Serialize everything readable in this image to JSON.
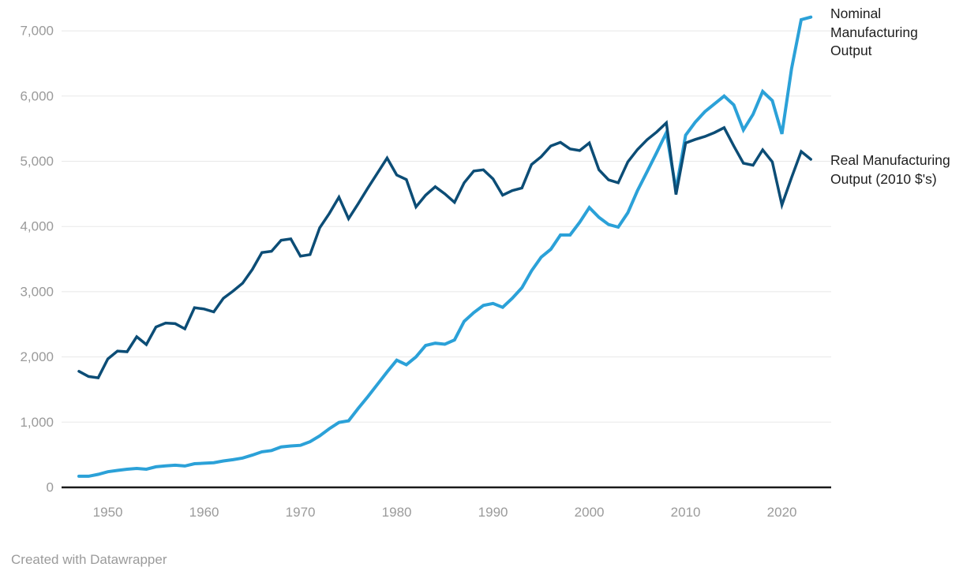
{
  "chart": {
    "attribution_text": "Created with Datawrapper"
  },
  "chart_data": {
    "type": "line",
    "title": "",
    "xlabel": "",
    "ylabel": "",
    "grid": "horizontal",
    "legend_position": "right of line ends",
    "x_range": [
      1947,
      2023
    ],
    "ylim": [
      0,
      7400
    ],
    "x": [
      1947,
      1948,
      1949,
      1950,
      1951,
      1952,
      1953,
      1954,
      1955,
      1956,
      1957,
      1958,
      1959,
      1960,
      1961,
      1962,
      1963,
      1964,
      1965,
      1966,
      1967,
      1968,
      1969,
      1970,
      1971,
      1972,
      1973,
      1974,
      1975,
      1976,
      1977,
      1978,
      1979,
      1980,
      1981,
      1982,
      1983,
      1984,
      1985,
      1986,
      1987,
      1988,
      1989,
      1990,
      1991,
      1992,
      1993,
      1994,
      1995,
      1996,
      1997,
      1998,
      1999,
      2000,
      2001,
      2002,
      2003,
      2004,
      2005,
      2006,
      2007,
      2008,
      2009,
      2010,
      2011,
      2012,
      2013,
      2014,
      2015,
      2016,
      2017,
      2018,
      2019,
      2020,
      2021,
      2022,
      2023
    ],
    "series": [
      {
        "name": "Nominal Manufacturing Output",
        "color": "#2BA1D8",
        "stroke_width": 4,
        "values": [
          170,
          170,
          200,
          240,
          260,
          278,
          290,
          278,
          315,
          330,
          340,
          328,
          363,
          370,
          378,
          405,
          425,
          450,
          495,
          545,
          565,
          620,
          635,
          645,
          700,
          790,
          900,
          995,
          1020,
          1210,
          1390,
          1580,
          1770,
          1950,
          1880,
          2000,
          2175,
          2210,
          2195,
          2260,
          2545,
          2680,
          2790,
          2820,
          2760,
          2900,
          3060,
          3320,
          3530,
          3650,
          3870,
          3870,
          4065,
          4290,
          4140,
          4030,
          3990,
          4210,
          4550,
          4840,
          5135,
          5440,
          4560,
          5400,
          5600,
          5760,
          5880,
          6000,
          5865,
          5480,
          5720,
          6070,
          5930,
          5420,
          6420,
          7170,
          7210
        ]
      },
      {
        "name": "Real Manufacturing Output (2010 $'s)",
        "color": "#0C4D76",
        "stroke_width": 3.5,
        "values": [
          1780,
          1700,
          1680,
          1970,
          2090,
          2080,
          2310,
          2190,
          2460,
          2520,
          2510,
          2430,
          2755,
          2735,
          2690,
          2900,
          3010,
          3130,
          3340,
          3600,
          3620,
          3790,
          3810,
          3545,
          3570,
          3980,
          4200,
          4450,
          4120,
          4350,
          4590,
          4820,
          5050,
          4790,
          4720,
          4300,
          4480,
          4610,
          4500,
          4370,
          4670,
          4850,
          4870,
          4730,
          4480,
          4550,
          4590,
          4950,
          5070,
          5235,
          5290,
          5190,
          5165,
          5280,
          4870,
          4715,
          4670,
          4990,
          5180,
          5330,
          5450,
          5590,
          4490,
          5280,
          5335,
          5380,
          5440,
          5515,
          5235,
          4970,
          4940,
          5175,
          4990,
          4330,
          4750,
          5150,
          5030
        ]
      }
    ],
    "y_ticks": [
      {
        "value": 0,
        "label": "0"
      },
      {
        "value": 1000,
        "label": "1,000"
      },
      {
        "value": 2000,
        "label": "2,000"
      },
      {
        "value": 3000,
        "label": "3,000"
      },
      {
        "value": 4000,
        "label": "4,000"
      },
      {
        "value": 5000,
        "label": "5,000"
      },
      {
        "value": 6000,
        "label": "6,000"
      },
      {
        "value": 7000,
        "label": "7,000"
      }
    ],
    "x_ticks": [
      {
        "value": 1950,
        "label": "1950"
      },
      {
        "value": 1960,
        "label": "1960"
      },
      {
        "value": 1970,
        "label": "1970"
      },
      {
        "value": 1980,
        "label": "1980"
      },
      {
        "value": 1990,
        "label": "1990"
      },
      {
        "value": 2000,
        "label": "2000"
      },
      {
        "value": 2010,
        "label": "2010"
      },
      {
        "value": 2020,
        "label": "2020"
      }
    ],
    "colors": {
      "gridline": "#e8e8e8",
      "axis_line": "#1a1a1a",
      "tick_text": "#9a9a9a",
      "legend_text": "#1f1f1f"
    }
  }
}
